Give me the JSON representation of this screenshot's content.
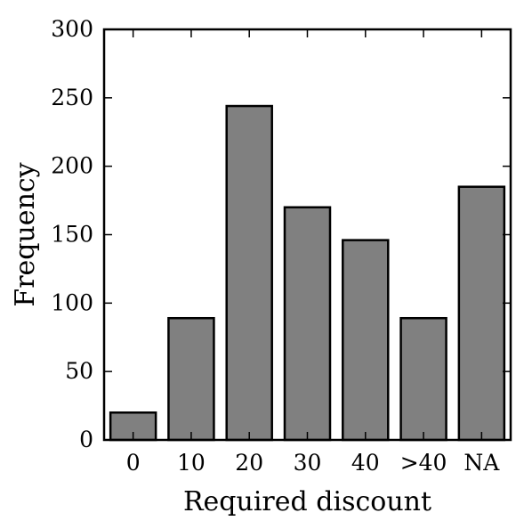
{
  "chart_data": {
    "type": "bar",
    "title": "",
    "xlabel": "Required discount",
    "ylabel": "Frequency",
    "categories": [
      "0",
      "10",
      "20",
      "30",
      "40",
      ">40",
      "NA"
    ],
    "values": [
      20,
      89,
      244,
      170,
      146,
      89,
      185
    ],
    "ylim": [
      0,
      300
    ],
    "yticks": [
      0,
      50,
      100,
      150,
      200,
      250,
      300
    ],
    "ytick_labels": [
      "0",
      "50",
      "100",
      "150",
      "200",
      "250",
      "300"
    ],
    "grid": false,
    "legend": "none",
    "bar_color": "#808080",
    "edge_color": "#000000"
  }
}
